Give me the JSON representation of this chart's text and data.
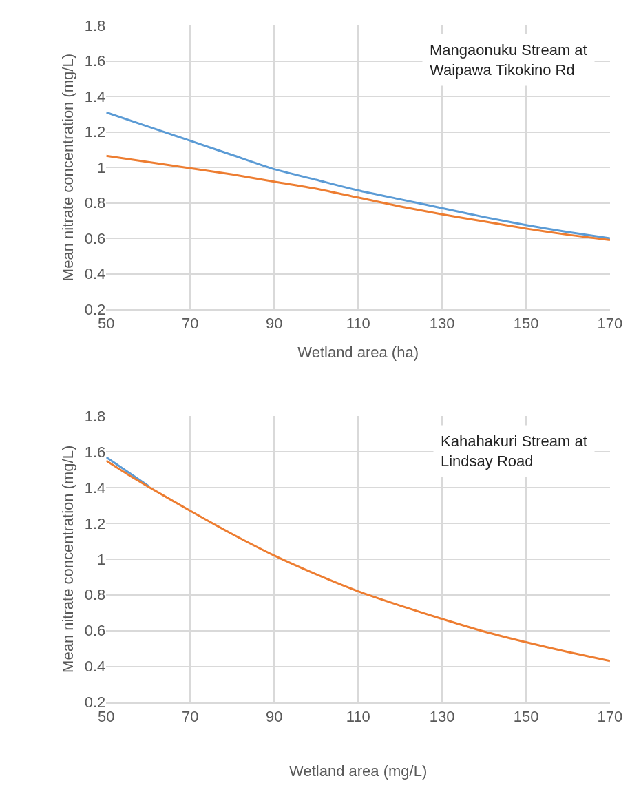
{
  "chart_data": [
    {
      "type": "line",
      "xlabel": "Wetland area (ha)",
      "ylabel": "Mean nitrate concentration (mg/L)",
      "annotations": [
        "Mangaonuku Stream at\nWaipawa Tikokino Rd"
      ],
      "x": [
        50,
        60,
        70,
        80,
        90,
        100,
        110,
        120,
        130,
        140,
        150,
        160,
        170
      ],
      "series": [
        {
          "color": "#5b9bd5",
          "values": [
            1.31,
            1.23,
            1.15,
            1.07,
            0.99,
            0.93,
            0.87,
            0.82,
            0.77,
            0.72,
            0.675,
            0.635,
            0.6
          ]
        },
        {
          "color": "#ed7d31",
          "values": [
            1.065,
            1.03,
            0.995,
            0.96,
            0.92,
            0.88,
            0.83,
            0.78,
            0.735,
            0.695,
            0.655,
            0.62,
            0.59
          ]
        }
      ],
      "xlim": [
        50,
        170
      ],
      "xticks": [
        50,
        70,
        90,
        110,
        130,
        150,
        170
      ],
      "ylim": [
        0.2,
        1.8
      ],
      "yticks": [
        0.2,
        0.4,
        0.6,
        0.8,
        1,
        1.2,
        1.4,
        1.6,
        1.8
      ],
      "grid": true
    },
    {
      "type": "line",
      "xlabel": "Wetland area (mg/L)",
      "ylabel": "Mean nitrate concentration (mg/L)",
      "annotations": [
        "Kahahakuri Stream at\nLindsay Road"
      ],
      "x": [
        50,
        55,
        60,
        70,
        80,
        90,
        100,
        110,
        120,
        130,
        140,
        150,
        160,
        170
      ],
      "series": [
        {
          "color": "#5b9bd5",
          "values": [
            1.57,
            1.49,
            1.41,
            null,
            null,
            null,
            null,
            null,
            null,
            null,
            null,
            null,
            null,
            null
          ]
        },
        {
          "color": "#ed7d31",
          "values": [
            1.55,
            1.475,
            1.405,
            1.27,
            1.14,
            1.02,
            0.915,
            0.82,
            0.74,
            0.665,
            0.595,
            0.535,
            0.48,
            0.43
          ]
        }
      ],
      "xlim": [
        50,
        170
      ],
      "xticks": [
        50,
        70,
        90,
        110,
        130,
        150,
        170
      ],
      "ylim": [
        0.2,
        1.8
      ],
      "yticks": [
        0.2,
        0.4,
        0.6,
        0.8,
        1,
        1.2,
        1.4,
        1.6,
        1.8
      ],
      "grid": true
    }
  ]
}
